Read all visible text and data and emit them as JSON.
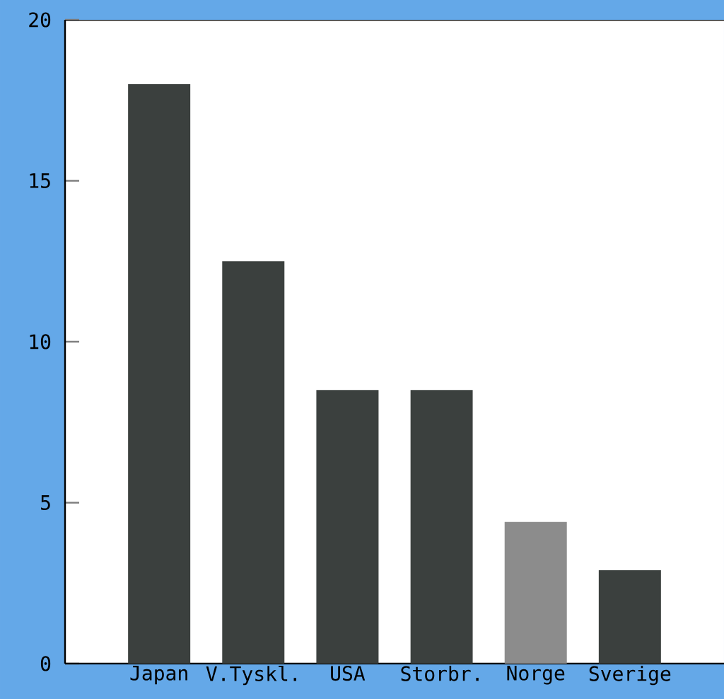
{
  "chart_data": {
    "type": "bar",
    "categories": [
      "Japan",
      "V.Tyskl.",
      "USA",
      "Storbr.",
      "Norge",
      "Sverige"
    ],
    "values": [
      18.0,
      12.5,
      8.5,
      8.5,
      4.4,
      2.9
    ],
    "colors": [
      "#3b403e",
      "#3b403e",
      "#3b403e",
      "#3b403e",
      "#8c8c8c",
      "#3b403e"
    ],
    "ylim": [
      0,
      20
    ],
    "yticks": [
      0,
      5,
      10,
      15,
      20
    ],
    "grid": false
  }
}
